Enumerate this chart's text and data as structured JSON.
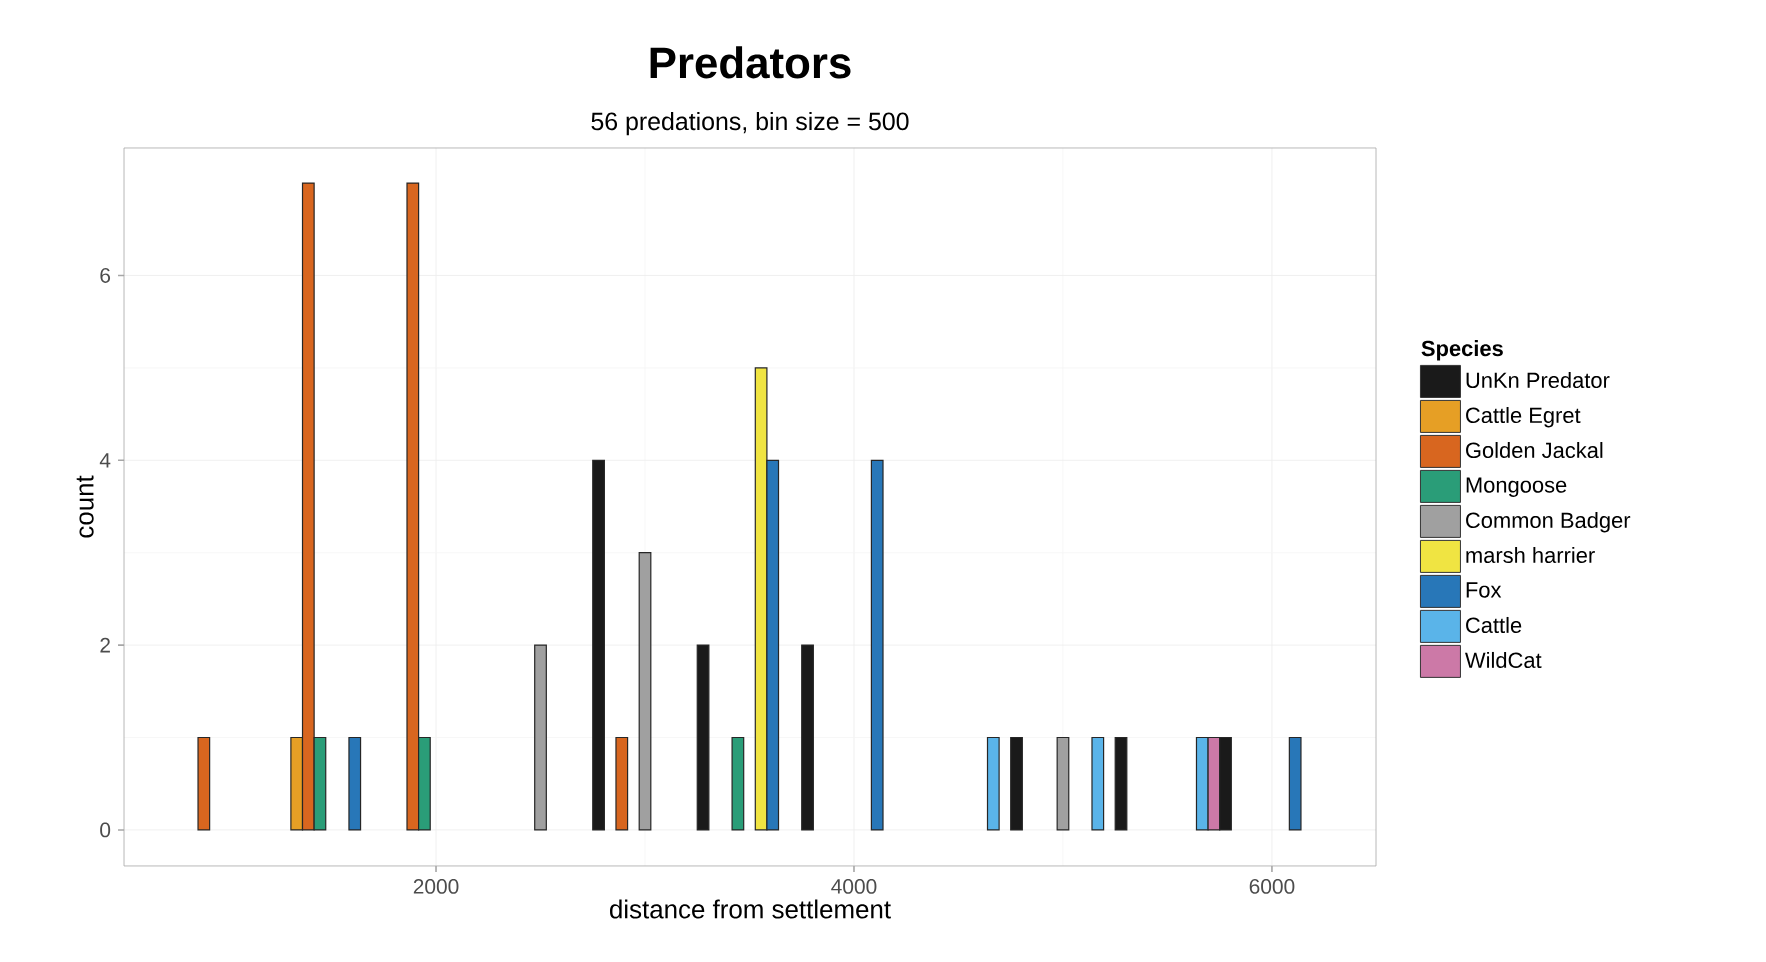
{
  "chart_data": {
    "type": "histogram",
    "title": "Predators",
    "subtitle": "56 predations, bin size = 500",
    "xlabel": "distance from settlement",
    "ylabel": "count",
    "legend_title": "Species",
    "bins": [
      750,
      1250,
      1750,
      2250,
      2750,
      3250,
      3750,
      4250,
      4750,
      5250,
      5750,
      6250
    ],
    "series": [
      {
        "name": "UnKn Predator",
        "color": "#1a1a1a",
        "values": [
          0,
          0,
          0,
          0,
          4,
          2,
          2,
          0,
          1,
          1,
          1
        ]
      },
      {
        "name": "Cattle Egret",
        "color": "#e69f25",
        "values": [
          0,
          1,
          0,
          0,
          0,
          0,
          0,
          0,
          0,
          0,
          0
        ]
      },
      {
        "name": "Golden Jackal",
        "color": "#d8661f",
        "values": [
          1,
          7,
          7,
          0,
          1,
          0,
          0,
          0,
          0,
          0,
          0
        ]
      },
      {
        "name": "Mongoose",
        "color": "#2a9d78",
        "values": [
          0,
          1,
          1,
          0,
          0,
          1,
          0,
          0,
          0,
          0,
          0
        ]
      },
      {
        "name": "Common Badger",
        "color": "#a0a0a0",
        "values": [
          0,
          0,
          0,
          2,
          3,
          0,
          0,
          0,
          1,
          0,
          0
        ]
      },
      {
        "name": "marsh harrier",
        "color": "#f0e442",
        "values": [
          0,
          0,
          0,
          0,
          0,
          5,
          0,
          0,
          0,
          0,
          0
        ]
      },
      {
        "name": "Fox",
        "color": "#2877b8",
        "values": [
          0,
          1,
          0,
          0,
          0,
          4,
          4,
          0,
          0,
          0,
          1
        ]
      },
      {
        "name": "Cattle",
        "color": "#5ab4e9",
        "values": [
          0,
          0,
          0,
          0,
          0,
          0,
          0,
          1,
          1,
          1,
          0
        ]
      },
      {
        "name": "WildCat",
        "color": "#cc79a7",
        "values": [
          0,
          0,
          0,
          0,
          0,
          0,
          0,
          0,
          0,
          1,
          0
        ]
      }
    ],
    "xlim": [
      507,
      6498
    ],
    "ylim": [
      -0.39,
      7.38
    ],
    "xticks": [
      2000,
      4000,
      6000
    ],
    "yticks": [
      0,
      2,
      4,
      6
    ],
    "grid": true,
    "legend": "right"
  }
}
